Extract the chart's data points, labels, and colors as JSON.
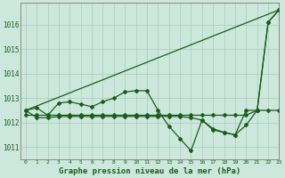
{
  "title": "Graphe pression niveau de la mer (hPa)",
  "bg_color": "#cce8dc",
  "grid_color": "#aaccba",
  "line_color": "#1a5c1a",
  "xlim": [
    -0.5,
    23
  ],
  "ylim": [
    1010.5,
    1016.9
  ],
  "yticks": [
    1011,
    1012,
    1013,
    1014,
    1015,
    1016
  ],
  "xticks": [
    0,
    1,
    2,
    3,
    4,
    5,
    6,
    7,
    8,
    9,
    10,
    11,
    12,
    13,
    14,
    15,
    16,
    17,
    18,
    19,
    20,
    21,
    22,
    23
  ],
  "series_marked1": {
    "x": [
      0,
      1,
      2,
      3,
      4,
      5,
      6,
      7,
      8,
      9,
      10,
      11,
      12,
      13,
      14,
      15,
      16,
      17,
      18,
      19,
      20,
      21,
      22,
      23
    ],
    "y": [
      1012.5,
      1012.6,
      1012.3,
      1012.8,
      1012.85,
      1012.75,
      1012.65,
      1012.85,
      1013.0,
      1013.25,
      1013.3,
      1013.3,
      1012.5,
      1011.85,
      1011.35,
      1010.85,
      1012.1,
      1011.7,
      1011.6,
      1011.5,
      1011.9,
      1012.5,
      1016.1,
      1016.6
    ]
  },
  "series_marked2": {
    "x": [
      0,
      1,
      2,
      3,
      4,
      5,
      6,
      7,
      8,
      9,
      10,
      11,
      12,
      13,
      14,
      15,
      16,
      17,
      18,
      19,
      20,
      21,
      22,
      23
    ],
    "y": [
      1012.5,
      1012.2,
      1012.2,
      1012.25,
      1012.25,
      1012.25,
      1012.25,
      1012.25,
      1012.25,
      1012.25,
      1012.25,
      1012.25,
      1012.25,
      1012.25,
      1012.25,
      1012.2,
      1012.1,
      1011.75,
      1011.6,
      1011.5,
      1012.5,
      1012.5,
      1012.5,
      1012.5
    ]
  },
  "series_flat": {
    "x": [
      0,
      1,
      2,
      3,
      4,
      5,
      6,
      7,
      8,
      9,
      10,
      11,
      12,
      13,
      14,
      15,
      16,
      17,
      18,
      19,
      20,
      21,
      22,
      23
    ],
    "y": [
      1012.3,
      1012.3,
      1012.3,
      1012.3,
      1012.3,
      1012.3,
      1012.3,
      1012.3,
      1012.3,
      1012.3,
      1012.3,
      1012.3,
      1012.3,
      1012.3,
      1012.3,
      1012.3,
      1012.3,
      1012.3,
      1012.3,
      1012.3,
      1012.3,
      1012.5,
      1016.1,
      1016.6
    ]
  },
  "series_diagonal": {
    "x": [
      0,
      23
    ],
    "y": [
      1012.5,
      1016.6
    ]
  }
}
